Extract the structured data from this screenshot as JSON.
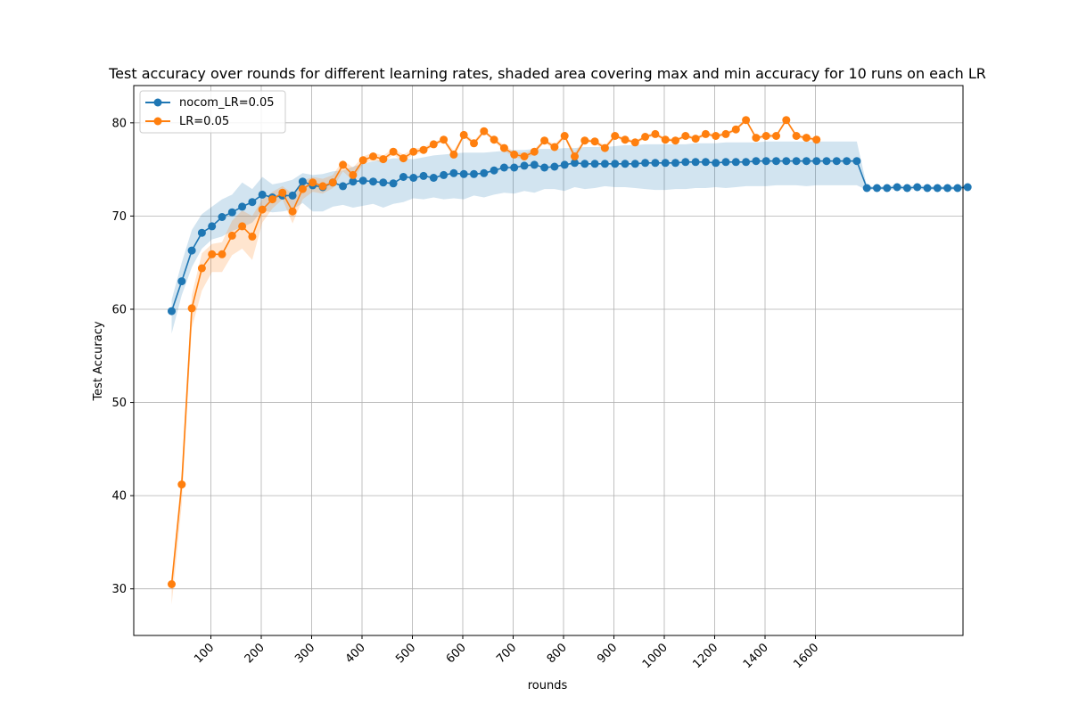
{
  "chart_data": {
    "type": "line",
    "title": "Test accuracy over rounds for different learning rates, shaded area covering max and min accuracy for 10 runs on each LR",
    "xlabel": "rounds",
    "ylabel": "Test Accuracy",
    "ylim": [
      25,
      84
    ],
    "grid": true,
    "legend_position": "upper-left",
    "x_tick_labels": [
      "100",
      "200",
      "300",
      "400",
      "500",
      "600",
      "700",
      "800",
      "900",
      "1000",
      "1200",
      "1400",
      "1600"
    ],
    "y_ticks": [
      30,
      40,
      50,
      60,
      70,
      80
    ],
    "series": [
      {
        "name": "nocom_LR=0.05",
        "color": "#1f77b4",
        "values": [
          59.8,
          63.0,
          66.3,
          68.2,
          68.9,
          69.9,
          70.4,
          71.0,
          71.5,
          72.3,
          72.0,
          72.2,
          72.2,
          73.7,
          73.3,
          73.1,
          73.6,
          73.2,
          73.7,
          73.8,
          73.7,
          73.6,
          73.5,
          74.2,
          74.1,
          74.3,
          74.1,
          74.4,
          74.6,
          74.5,
          74.5,
          74.6,
          74.9,
          75.2,
          75.2,
          75.4,
          75.5,
          75.2,
          75.3,
          75.5,
          75.7,
          75.6,
          75.6,
          75.6,
          75.6,
          75.6,
          75.6,
          75.7,
          75.7,
          75.7,
          75.7,
          75.8,
          75.8,
          75.8,
          75.7,
          75.8,
          75.8,
          75.8,
          75.9,
          75.9,
          75.9,
          75.9,
          75.9,
          75.9,
          75.9,
          75.9,
          75.9,
          75.9,
          75.9,
          73.0,
          73.0,
          73.0,
          73.1,
          73.0,
          73.1,
          73.0,
          73.0,
          73.0,
          73.0,
          73.1
        ],
        "upper": [
          61.0,
          65.0,
          68.5,
          70.2,
          71.0,
          71.8,
          72.3,
          73.6,
          72.9,
          74.2,
          73.4,
          73.6,
          73.9,
          74.6,
          74.4,
          74.5,
          74.8,
          74.9,
          75.3,
          75.6,
          75.9,
          76.0,
          76.2,
          76.2,
          76.1,
          76.3,
          76.5,
          76.6,
          76.7,
          76.8,
          76.8,
          76.8,
          76.9,
          77.0,
          77.1,
          77.1,
          77.2,
          77.2,
          77.2,
          77.3,
          77.3,
          77.4,
          77.4,
          77.4,
          77.5,
          77.6,
          77.6,
          77.7,
          77.7,
          77.7,
          77.7,
          77.7,
          77.8,
          77.8,
          77.8,
          77.9,
          77.9,
          77.9,
          77.9,
          78.0,
          78.0,
          78.0,
          78.0,
          78.0,
          78.0,
          78.0,
          78.0,
          78.0,
          78.0,
          73.2,
          73.2,
          73.2,
          73.3,
          73.2,
          73.3,
          73.2,
          73.2,
          73.2,
          73.2,
          73.3
        ],
        "lower": [
          57.4,
          61.5,
          64.5,
          66.5,
          67.5,
          67.8,
          68.4,
          68.8,
          69.3,
          70.6,
          70.4,
          70.5,
          70.7,
          71.4,
          70.5,
          70.5,
          71.0,
          71.2,
          70.9,
          71.1,
          71.3,
          70.9,
          71.3,
          71.5,
          71.9,
          71.8,
          72.0,
          71.8,
          71.9,
          71.8,
          72.2,
          72.0,
          72.3,
          72.5,
          72.4,
          72.7,
          72.5,
          72.9,
          72.9,
          72.7,
          73.1,
          72.9,
          73.0,
          73.2,
          73.1,
          73.1,
          73.0,
          72.9,
          72.8,
          72.8,
          72.9,
          72.9,
          73.0,
          73.0,
          73.1,
          73.0,
          73.1,
          73.2,
          73.2,
          73.2,
          73.3,
          73.3,
          73.3,
          73.2,
          73.3,
          73.3,
          73.3,
          73.3,
          73.3,
          72.8,
          72.8,
          72.8,
          72.9,
          72.8,
          72.9,
          72.8,
          72.8,
          72.8,
          72.8,
          72.9
        ]
      },
      {
        "name": "LR=0.05",
        "color": "#ff7f0e",
        "values": [
          30.5,
          41.2,
          60.1,
          64.4,
          65.9,
          65.9,
          67.9,
          68.9,
          67.8,
          70.7,
          71.8,
          72.5,
          70.5,
          72.9,
          73.6,
          73.2,
          73.6,
          75.5,
          74.4,
          76.0,
          76.4,
          76.1,
          76.9,
          76.2,
          76.9,
          77.1,
          77.7,
          78.2,
          76.6,
          78.7,
          77.8,
          79.1,
          78.2,
          77.3,
          76.6,
          76.4,
          76.9,
          78.1,
          77.4,
          78.6,
          76.4,
          78.1,
          78.0,
          77.3,
          78.6,
          78.2,
          77.9,
          78.5,
          78.8,
          78.2,
          78.1,
          78.6,
          78.3,
          78.8,
          78.6,
          78.8,
          79.3,
          80.3,
          78.4,
          78.6,
          78.6,
          80.3,
          78.6,
          78.4,
          78.2
        ],
        "upper": [
          31.0,
          42.5,
          61.5,
          66.0,
          67.0,
          67.2,
          69.5,
          70.6,
          70.0,
          71.8,
          72.6,
          73.2,
          72.4,
          73.8,
          74.2,
          74.0,
          74.4,
          76.0,
          75.2,
          76.4,
          76.8,
          76.5,
          77.2,
          76.6,
          77.2,
          77.4,
          77.9,
          78.4,
          77.0,
          78.9,
          78.1,
          79.3,
          78.4,
          77.6,
          76.9,
          76.7,
          77.2,
          78.3,
          77.7,
          78.8,
          76.8,
          78.3,
          78.2,
          77.6,
          78.8,
          78.4,
          78.1,
          78.7,
          79.0,
          78.4,
          78.3,
          78.8,
          78.5,
          79.0,
          78.8,
          79.0,
          79.5,
          80.5,
          78.6,
          78.8,
          78.8,
          80.5,
          78.8,
          78.6,
          78.4
        ],
        "lower": [
          28.3,
          39.0,
          58.0,
          62.0,
          64.0,
          64.0,
          65.8,
          66.5,
          65.3,
          69.3,
          70.8,
          71.8,
          69.2,
          71.8,
          72.6,
          72.4,
          73.0,
          74.8,
          73.8,
          75.6,
          76.0,
          75.7,
          76.6,
          75.8,
          76.6,
          76.8,
          77.5,
          78.0,
          76.2,
          78.5,
          77.5,
          78.9,
          78.0,
          77.0,
          76.3,
          76.1,
          76.6,
          77.9,
          77.1,
          78.4,
          76.0,
          77.9,
          77.8,
          77.0,
          78.4,
          78.0,
          77.7,
          78.3,
          78.6,
          78.0,
          77.9,
          78.4,
          78.1,
          78.6,
          78.4,
          78.6,
          79.1,
          80.1,
          78.2,
          78.4,
          78.4,
          80.1,
          78.4,
          78.2,
          78.0
        ]
      }
    ]
  }
}
